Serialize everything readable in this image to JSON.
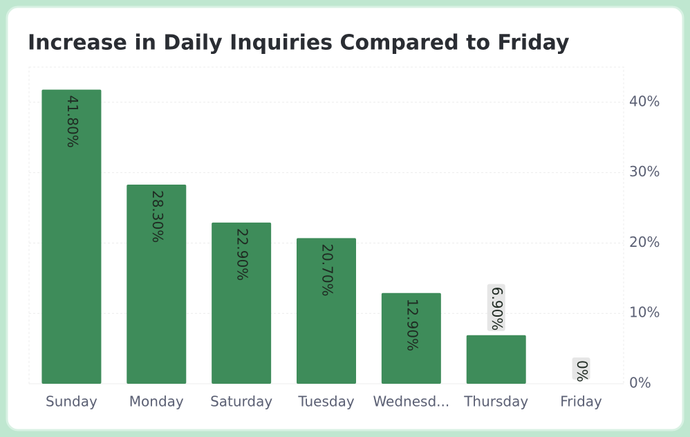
{
  "chart_data": {
    "type": "bar",
    "title": "Increase in Daily Inquiries Compared to Friday",
    "categories": [
      "Sunday",
      "Monday",
      "Saturday",
      "Tuesday",
      "Wednesd...",
      "Thursday",
      "Friday"
    ],
    "values": [
      41.8,
      28.3,
      22.9,
      20.7,
      12.9,
      6.9,
      0
    ],
    "value_labels": [
      "41.80%",
      "28.30%",
      "22.90%",
      "20.70%",
      "12.90%",
      "6.90%",
      "0%"
    ],
    "color": "#3e8c5a",
    "ylim": [
      0,
      45
    ],
    "yticks": [
      {
        "value": 0,
        "label": "0%"
      },
      {
        "value": 10,
        "label": "10%"
      },
      {
        "value": 20,
        "label": "20%"
      },
      {
        "value": 30,
        "label": "30%"
      },
      {
        "value": 40,
        "label": "40%"
      }
    ],
    "grid": true,
    "y_axis_side": "right"
  }
}
